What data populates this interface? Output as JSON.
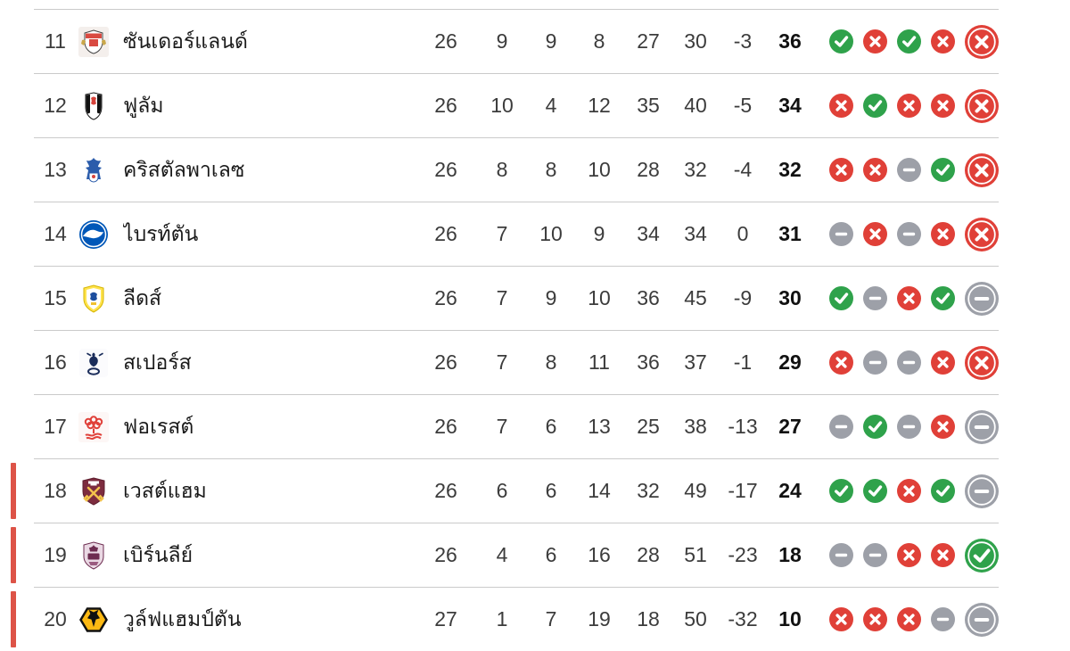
{
  "colors": {
    "win": "#2fa24b",
    "loss": "#e04038",
    "draw": "#9da0a8",
    "relegation_marker": "#dd5347",
    "row_border": "#cacaca"
  },
  "form_legend": {
    "W": "win",
    "D": "draw",
    "L": "loss"
  },
  "rows": [
    {
      "pos": "11",
      "crest": "sunderland",
      "team": "ซันเดอร์แลนด์",
      "p": "26",
      "w": "9",
      "d": "9",
      "l": "8",
      "gf": "27",
      "ga": "30",
      "gd": "-3",
      "pts": "36",
      "form": [
        "W",
        "L",
        "W",
        "L",
        "L"
      ],
      "relegation": false
    },
    {
      "pos": "12",
      "crest": "fulham",
      "team": "ฟูลัม",
      "p": "26",
      "w": "10",
      "d": "4",
      "l": "12",
      "gf": "35",
      "ga": "40",
      "gd": "-5",
      "pts": "34",
      "form": [
        "L",
        "W",
        "L",
        "L",
        "L"
      ],
      "relegation": false
    },
    {
      "pos": "13",
      "crest": "crystal-palace",
      "team": "คริสตัลพาเลซ",
      "p": "26",
      "w": "8",
      "d": "8",
      "l": "10",
      "gf": "28",
      "ga": "32",
      "gd": "-4",
      "pts": "32",
      "form": [
        "L",
        "L",
        "D",
        "W",
        "L"
      ],
      "relegation": false
    },
    {
      "pos": "14",
      "crest": "brighton",
      "team": "ไบรท์ตัน",
      "p": "26",
      "w": "7",
      "d": "10",
      "l": "9",
      "gf": "34",
      "ga": "34",
      "gd": "0",
      "pts": "31",
      "form": [
        "D",
        "L",
        "D",
        "L",
        "L"
      ],
      "relegation": false
    },
    {
      "pos": "15",
      "crest": "leeds",
      "team": "ลีดส์",
      "p": "26",
      "w": "7",
      "d": "9",
      "l": "10",
      "gf": "36",
      "ga": "45",
      "gd": "-9",
      "pts": "30",
      "form": [
        "W",
        "D",
        "L",
        "W",
        "D"
      ],
      "relegation": false
    },
    {
      "pos": "16",
      "crest": "tottenham",
      "team": "สเปอร์ส",
      "p": "26",
      "w": "7",
      "d": "8",
      "l": "11",
      "gf": "36",
      "ga": "37",
      "gd": "-1",
      "pts": "29",
      "form": [
        "L",
        "D",
        "D",
        "L",
        "L"
      ],
      "relegation": false
    },
    {
      "pos": "17",
      "crest": "nottingham-forest",
      "team": "ฟอเรสต์",
      "p": "26",
      "w": "7",
      "d": "6",
      "l": "13",
      "gf": "25",
      "ga": "38",
      "gd": "-13",
      "pts": "27",
      "form": [
        "D",
        "W",
        "D",
        "L",
        "D"
      ],
      "relegation": false
    },
    {
      "pos": "18",
      "crest": "west-ham",
      "team": "เวสต์แฮม",
      "p": "26",
      "w": "6",
      "d": "6",
      "l": "14",
      "gf": "32",
      "ga": "49",
      "gd": "-17",
      "pts": "24",
      "form": [
        "W",
        "W",
        "L",
        "W",
        "D"
      ],
      "relegation": true
    },
    {
      "pos": "19",
      "crest": "burnley",
      "team": "เบิร์นลีย์",
      "p": "26",
      "w": "4",
      "d": "6",
      "l": "16",
      "gf": "28",
      "ga": "51",
      "gd": "-23",
      "pts": "18",
      "form": [
        "D",
        "D",
        "L",
        "L",
        "W"
      ],
      "relegation": true
    },
    {
      "pos": "20",
      "crest": "wolverhampton",
      "team": "วูล์ฟแฮมป์ตัน",
      "p": "27",
      "w": "1",
      "d": "7",
      "l": "19",
      "gf": "18",
      "ga": "50",
      "gd": "-32",
      "pts": "10",
      "form": [
        "L",
        "L",
        "L",
        "D",
        "D"
      ],
      "relegation": true
    }
  ]
}
